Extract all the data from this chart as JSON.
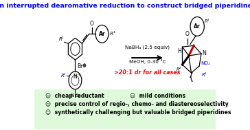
{
  "title": "An interrupted dearomative reduction to construct bridged piperidines",
  "title_color": "#0000FF",
  "title_fontsize": 6.8,
  "bg_color": "#FFFFFF",
  "bottom_bg_color": "#DFFADA",
  "arrow_text1": "NaBH₄ (2.5 equiv)",
  "arrow_text2": "MeOH, 0-30 °C",
  "dr_text": ">20:1 dr for all cases",
  "dr_color": "#FF0000",
  "bullet1a": "☺  cheap reductant",
  "bullet1b": "☺  mild conditions",
  "bullet2": "☺  precise control of regio-, chemo- and diastereoselectivity",
  "bullet3": "☺  synthetically challenging but valuable bridged piperidines",
  "bullet_fontsize": 5.6,
  "fig_width": 3.64,
  "fig_height": 1.89,
  "dpi": 100
}
